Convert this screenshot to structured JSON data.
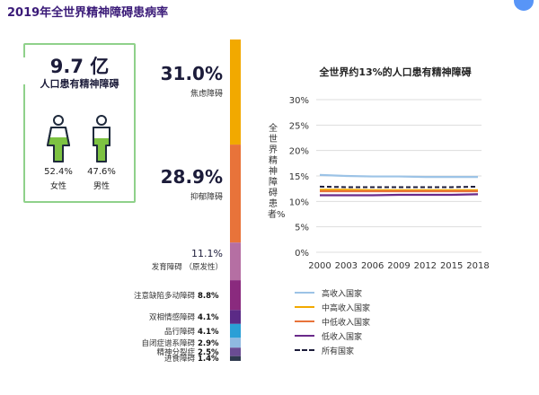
{
  "title": "2019年全世界精神障碍患病率",
  "summary": {
    "total_value": "9.7 亿",
    "total_label": "人口患有精神障碍",
    "female_pct": "52.4%",
    "female_label": "女性",
    "male_pct": "47.6%",
    "male_label": "男性",
    "female_color": "#7dc242",
    "male_color": "#7dc242",
    "icon_color": "#1f2a3c",
    "border_color": "#8fd18a"
  },
  "chart_data": [
    {
      "type": "bar",
      "orientation": "stacked-vertical",
      "title": "",
      "categories": [
        "焦虑障碍",
        "抑郁障碍",
        "发育障碍（原发性）",
        "注意缺陷多动障碍",
        "双相情感障碍",
        "品行障碍",
        "自闭症谱系障碍",
        "精神分裂症",
        "进食障碍"
      ],
      "values": [
        31.0,
        28.9,
        11.1,
        8.8,
        4.1,
        4.1,
        2.9,
        2.5,
        1.4
      ],
      "labels": [
        "31.0%",
        "28.9%",
        "11.1%",
        "8.8%",
        "4.1%",
        "4.1%",
        "2.9%",
        "2.5%",
        "1.4%"
      ],
      "category_lines": [
        [
          "焦虑障碍"
        ],
        [
          "抑郁障碍"
        ],
        [
          "发育障碍",
          "（原发性）"
        ],
        [
          "注意缺陷多动障碍"
        ],
        [
          "双相情感障碍"
        ],
        [
          "品行障碍"
        ],
        [
          "自闭症谱系障碍"
        ],
        [
          "精神分裂症"
        ],
        [
          "进食障碍"
        ]
      ],
      "colors": [
        "#f2a900",
        "#e8733a",
        "#b56fa3",
        "#8a2a7e",
        "#5b2a86",
        "#2a9fd6",
        "#8fb9e0",
        "#6a4c93",
        "#2f3a4f"
      ]
    },
    {
      "type": "line",
      "title": "全世界约13%的人口患有精神障碍",
      "xlabel": "",
      "ylabel": "全世界精神障碍患者%",
      "ylim": [
        0,
        30
      ],
      "yticks": [
        "0%",
        "5%",
        "10%",
        "15%",
        "20%",
        "25%",
        "30%"
      ],
      "x": [
        2000,
        2003,
        2006,
        2009,
        2012,
        2015,
        2018
      ],
      "grid": true,
      "legend_position": "bottom",
      "series": [
        {
          "name": "高收入国家",
          "values": [
            15.2,
            15.0,
            14.9,
            14.9,
            14.8,
            14.8,
            14.8
          ],
          "color": "#9cc3e6",
          "dash": "solid"
        },
        {
          "name": "中高收入国家",
          "values": [
            12.3,
            12.3,
            12.2,
            12.2,
            12.2,
            12.2,
            12.2
          ],
          "color": "#f2a900",
          "dash": "solid"
        },
        {
          "name": "中低收入国家",
          "values": [
            12.0,
            12.0,
            12.0,
            12.0,
            12.0,
            12.0,
            12.0
          ],
          "color": "#e8733a",
          "dash": "solid"
        },
        {
          "name": "低收入国家",
          "values": [
            11.2,
            11.2,
            11.2,
            11.3,
            11.3,
            11.3,
            11.4
          ],
          "color": "#6a2a8a",
          "dash": "solid"
        },
        {
          "name": "所有国家",
          "values": [
            12.9,
            12.8,
            12.8,
            12.8,
            12.8,
            12.8,
            12.9
          ],
          "color": "#1c1c3a",
          "dash": "dashed"
        }
      ]
    }
  ]
}
